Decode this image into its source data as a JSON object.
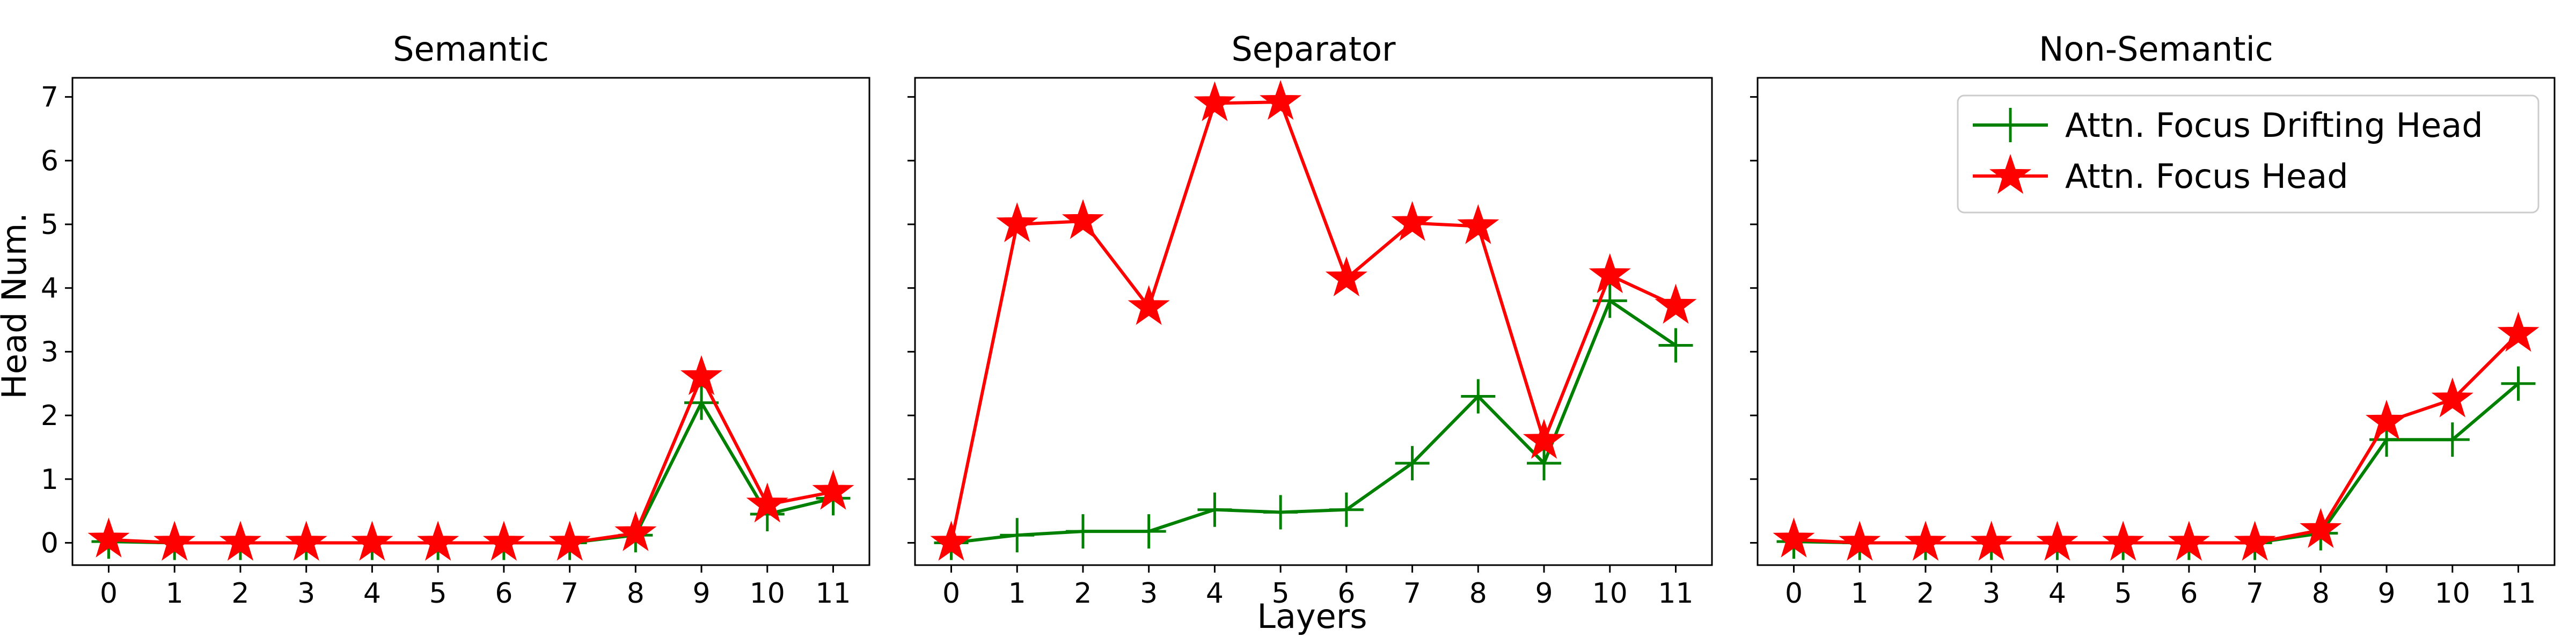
{
  "figure": {
    "ylabel": "Head Num.",
    "xlabel": "Layers"
  },
  "colors": {
    "drifting": "#008000",
    "focus": "#ff0000"
  },
  "legend": {
    "placement": "top-right of third panel",
    "entries": [
      "Attn. Focus Drifting Head",
      "Attn. Focus Head"
    ]
  },
  "chart_data": [
    {
      "type": "line",
      "title": "Semantic",
      "xlabel": "",
      "ylabel": "Head Num.",
      "x": [
        0,
        1,
        2,
        3,
        4,
        5,
        6,
        7,
        8,
        9,
        10,
        11
      ],
      "ylim": [
        -0.35,
        7.3
      ],
      "yticks": [
        0,
        1,
        2,
        3,
        4,
        5,
        6,
        7
      ],
      "series": [
        {
          "name": "Attn. Focus Drifting Head",
          "marker": "plus",
          "values": [
            0.02,
            0,
            0,
            0,
            0,
            0,
            0,
            0,
            0.12,
            2.2,
            0.45,
            0.7
          ]
        },
        {
          "name": "Attn. Focus Head",
          "marker": "star",
          "values": [
            0.05,
            0,
            0,
            0,
            0,
            0,
            0,
            0,
            0.15,
            2.6,
            0.6,
            0.8
          ]
        }
      ]
    },
    {
      "type": "line",
      "title": "Separator",
      "xlabel": "Layers",
      "ylabel": "",
      "x": [
        0,
        1,
        2,
        3,
        4,
        5,
        6,
        7,
        8,
        9,
        10,
        11
      ],
      "ylim": [
        -0.35,
        7.3
      ],
      "yticks": [
        0,
        1,
        2,
        3,
        4,
        5,
        6,
        7
      ],
      "series": [
        {
          "name": "Attn. Focus Drifting Head",
          "marker": "plus",
          "values": [
            0,
            0.12,
            0.18,
            0.18,
            0.52,
            0.48,
            0.52,
            1.25,
            2.3,
            1.25,
            3.8,
            3.1
          ]
        },
        {
          "name": "Attn. Focus Head",
          "marker": "star",
          "values": [
            0,
            5.0,
            5.05,
            3.7,
            6.9,
            6.92,
            4.15,
            5.02,
            4.97,
            1.6,
            4.2,
            3.72
          ]
        }
      ]
    },
    {
      "type": "line",
      "title": "Non-Semantic",
      "xlabel": "",
      "ylabel": "",
      "x": [
        0,
        1,
        2,
        3,
        4,
        5,
        6,
        7,
        8,
        9,
        10,
        11
      ],
      "ylim": [
        -0.35,
        7.3
      ],
      "yticks": [
        0,
        1,
        2,
        3,
        4,
        5,
        6,
        7
      ],
      "legend": true,
      "series": [
        {
          "name": "Attn. Focus Drifting Head",
          "marker": "plus",
          "values": [
            0.02,
            0,
            0,
            0,
            0,
            0,
            0,
            0,
            0.15,
            1.62,
            1.62,
            2.5
          ]
        },
        {
          "name": "Attn. Focus Head",
          "marker": "star",
          "values": [
            0.05,
            0,
            0,
            0,
            0,
            0,
            0,
            0,
            0.2,
            1.9,
            2.25,
            3.28
          ]
        }
      ]
    }
  ]
}
